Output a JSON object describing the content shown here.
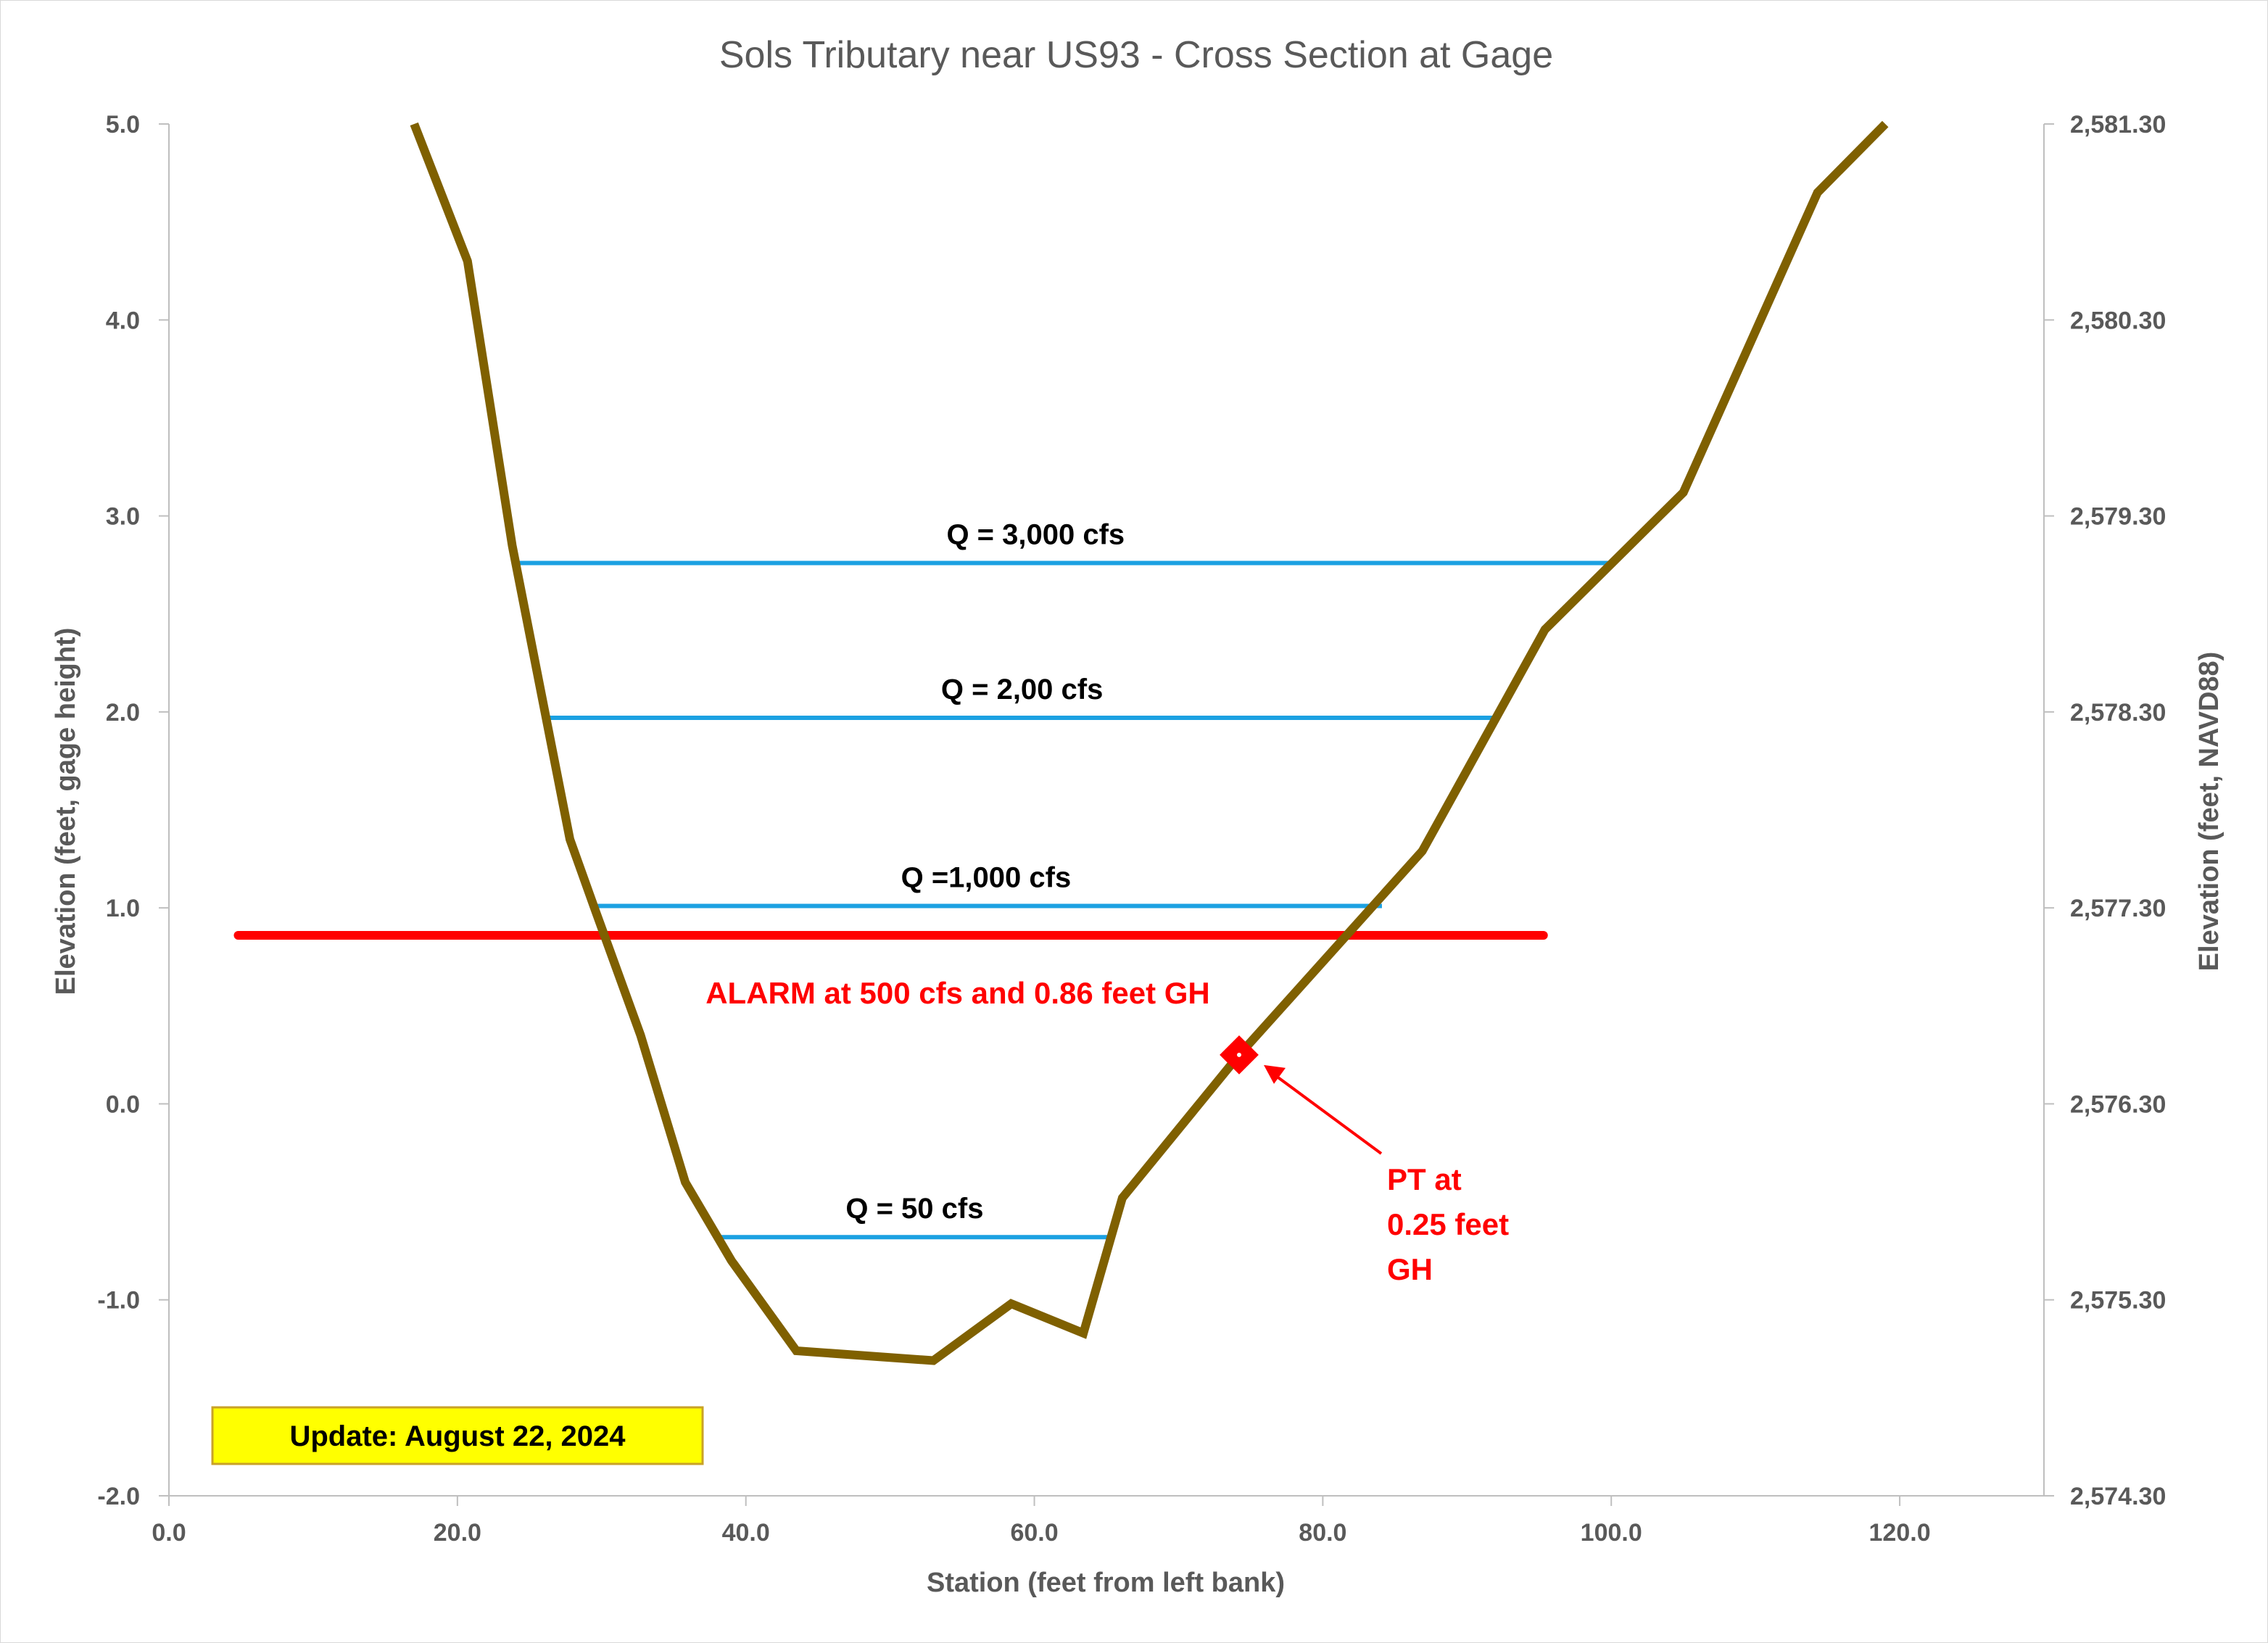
{
  "chart_data": {
    "type": "line",
    "title": "Sols Tributary near US93 - Cross Section at Gage",
    "xlabel": "Station (feet from left bank)",
    "ylabel_left": "Elevation (feet, gage height)",
    "ylabel_right": "Elevation (feet, NAVD88)",
    "xlim": [
      0,
      130
    ],
    "ylim_left": [
      -2.0,
      5.0
    ],
    "ylim_right": [
      2574.3,
      2581.3
    ],
    "x_ticks": [
      "0.0",
      "20.0",
      "40.0",
      "60.0",
      "80.0",
      "100.0",
      "120.0"
    ],
    "y_ticks_left": [
      "-2.0",
      "-1.0",
      "0.0",
      "1.0",
      "2.0",
      "3.0",
      "4.0",
      "5.0"
    ],
    "y_ticks_right": [
      "2,574.30",
      "2,575.30",
      "2,576.30",
      "2,577.30",
      "2,578.30",
      "2,579.30",
      "2,580.30",
      "2,581.30"
    ],
    "grid": false,
    "cross_section": {
      "color": "#7f6000",
      "points": [
        [
          17.0,
          5.0
        ],
        [
          20.7,
          4.3
        ],
        [
          23.8,
          2.85
        ],
        [
          27.8,
          1.35
        ],
        [
          29.5,
          1.0
        ],
        [
          32.7,
          0.35
        ],
        [
          35.8,
          -0.4
        ],
        [
          39.0,
          -0.8
        ],
        [
          43.5,
          -1.26
        ],
        [
          53.0,
          -1.31
        ],
        [
          58.4,
          -1.02
        ],
        [
          63.4,
          -1.17
        ],
        [
          66.1,
          -0.48
        ],
        [
          74.2,
          0.25
        ],
        [
          86.9,
          1.29
        ],
        [
          95.4,
          2.42
        ],
        [
          105.0,
          3.12
        ],
        [
          114.3,
          4.65
        ],
        [
          119.0,
          5.0
        ]
      ]
    },
    "flow_lines": [
      {
        "label": "Q = 3,000 cfs",
        "y": 2.76,
        "x1": 24.1,
        "x2": 100.1,
        "color": "#1ba1e2"
      },
      {
        "label": "Q = 2,00 cfs",
        "y": 1.97,
        "x1": 26.2,
        "x2": 92.1,
        "color": "#1ba1e2"
      },
      {
        "label": "Q =1,000 cfs",
        "y": 1.01,
        "x1": 29.2,
        "x2": 84.1,
        "color": "#1ba1e2"
      },
      {
        "label": "Q = 50 cfs",
        "y": -0.68,
        "x1": 38.2,
        "x2": 65.2,
        "color": "#1ba1e2"
      }
    ],
    "alarm": {
      "label": "ALARM at 500 cfs and 0.86 feet GH",
      "y": 0.86,
      "x1": 4.8,
      "x2": 95.3,
      "color": "#ff0000"
    },
    "pt_marker": {
      "x": 74.2,
      "y": 0.25,
      "label_lines": [
        "PT at",
        "0.25 feet",
        "GH"
      ],
      "color": "#ff0000"
    },
    "update_box": {
      "text": "Update: August 22, 2024",
      "fill": "#ffff00",
      "border": "#c9a227"
    }
  }
}
